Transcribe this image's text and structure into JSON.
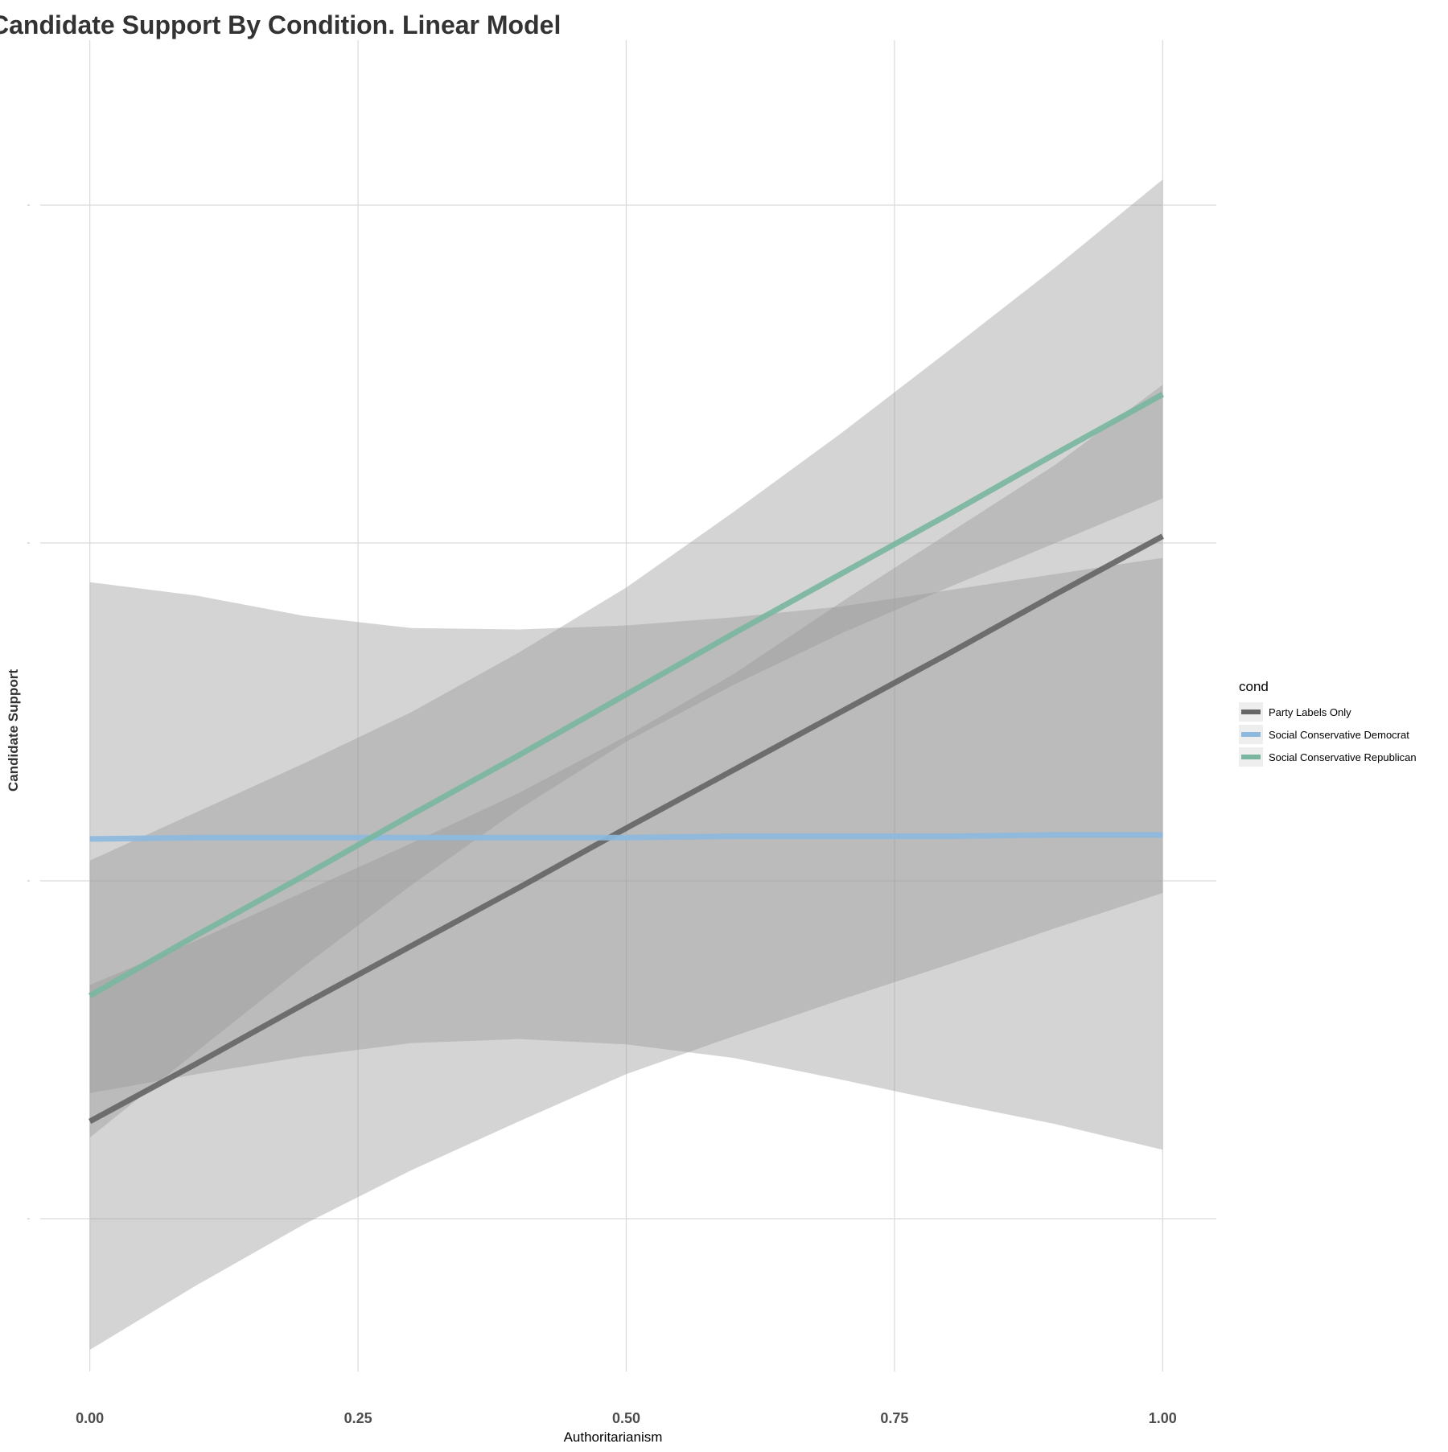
{
  "chart_data": {
    "type": "line",
    "title": "Candidate Support By Condition. Linear Model",
    "xlabel": "Authoritarianism",
    "ylabel": "Candidate Support",
    "xlim": [
      -0.05,
      1.05
    ],
    "ylim": [
      0.0,
      1.0
    ],
    "x_ticks": [
      "0.00",
      "0.25",
      "0.50",
      "0.75",
      "1.00"
    ],
    "x_tick_values": [
      0.0,
      0.25,
      0.5,
      0.75,
      1.0
    ],
    "y_gridlines": [
      0.125,
      0.375,
      0.625,
      0.875
    ],
    "y_tick_labels_visible": false,
    "grid": true,
    "legend": {
      "title": "cond",
      "placement": "right"
    },
    "series": [
      {
        "name": "Party Labels Only",
        "color": "#666666",
        "line_width": 7,
        "x": [
          0.0,
          0.1,
          0.2,
          0.3,
          0.4,
          0.5,
          0.6,
          0.7,
          0.8,
          0.9,
          1.0
        ],
        "y": [
          0.197,
          0.24,
          0.284,
          0.327,
          0.37,
          0.414,
          0.457,
          0.5,
          0.543,
          0.587,
          0.63
        ],
        "ribbon_low": [
          0.028,
          0.076,
          0.121,
          0.161,
          0.197,
          0.232,
          0.26,
          0.287,
          0.313,
          0.34,
          0.366
        ],
        "ribbon_high": [
          0.298,
          0.331,
          0.367,
          0.403,
          0.44,
          0.482,
          0.528,
          0.581,
          0.632,
          0.683,
          0.742
        ]
      },
      {
        "name": "Social Conservative Democrat",
        "color": "#8db9de",
        "line_width": 7,
        "x": [
          0.0,
          0.1,
          0.2,
          0.3,
          0.4,
          0.5,
          0.6,
          0.7,
          0.8,
          0.9,
          1.0
        ],
        "y": [
          0.406,
          0.407,
          0.407,
          0.407,
          0.407,
          0.407,
          0.408,
          0.408,
          0.408,
          0.409,
          0.409
        ],
        "ribbon_low": [
          0.218,
          0.232,
          0.245,
          0.255,
          0.258,
          0.254,
          0.244,
          0.228,
          0.211,
          0.195,
          0.176
        ],
        "ribbon_high": [
          0.596,
          0.586,
          0.571,
          0.562,
          0.561,
          0.564,
          0.57,
          0.578,
          0.59,
          0.602,
          0.614
        ]
      },
      {
        "name": "Social Conservative Republican",
        "color": "#7ab69f",
        "line_width": 7,
        "x": [
          0.0,
          0.1,
          0.2,
          0.3,
          0.4,
          0.5,
          0.6,
          0.7,
          0.8,
          0.9,
          1.0
        ],
        "y": [
          0.29,
          0.335,
          0.379,
          0.424,
          0.468,
          0.513,
          0.558,
          0.602,
          0.646,
          0.691,
          0.735
        ],
        "ribbon_low": [
          0.185,
          0.249,
          0.312,
          0.372,
          0.428,
          0.478,
          0.52,
          0.558,
          0.592,
          0.625,
          0.658
        ],
        "ribbon_high": [
          0.39,
          0.426,
          0.462,
          0.5,
          0.544,
          0.592,
          0.648,
          0.706,
          0.767,
          0.829,
          0.894
        ]
      }
    ]
  }
}
